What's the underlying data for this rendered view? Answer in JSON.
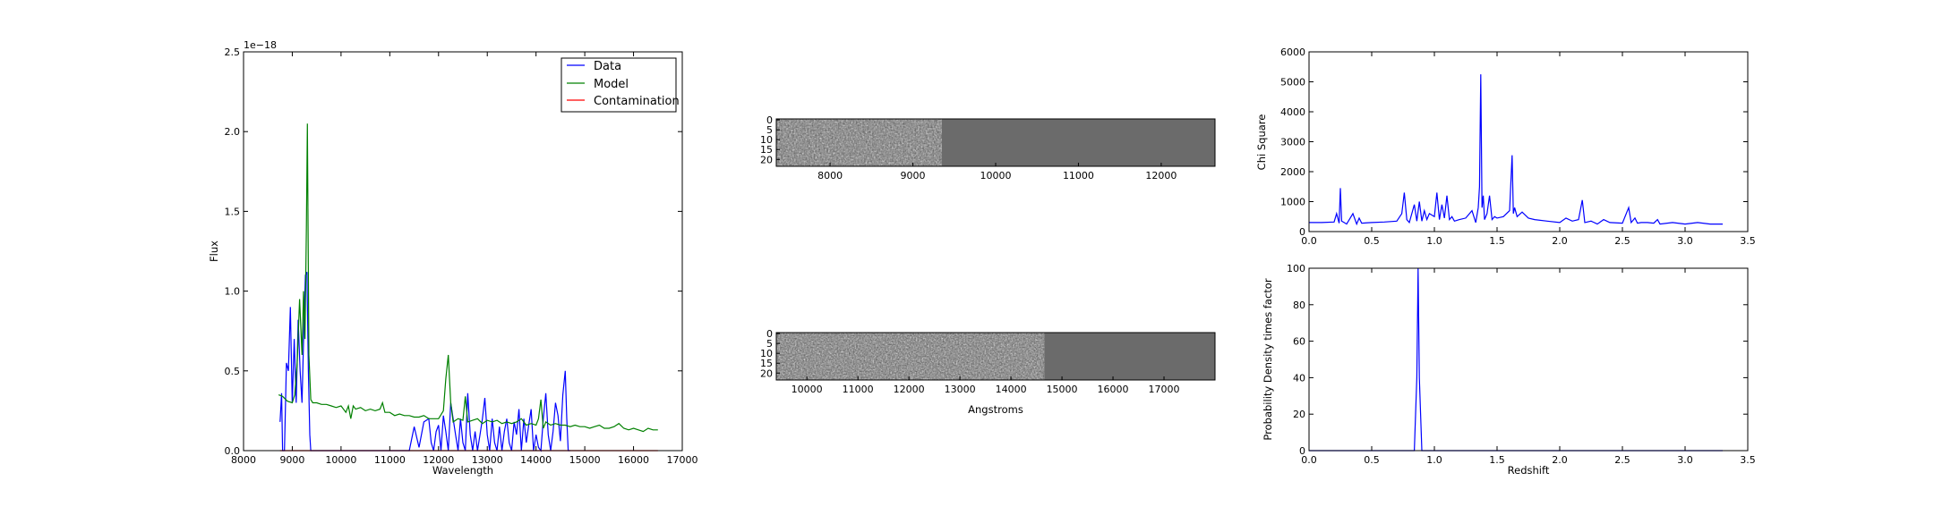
{
  "chart_data": [
    {
      "id": "spectrum",
      "type": "line",
      "xlabel": "Wavelength",
      "ylabel": "Flux",
      "offset_text": "1e−18",
      "xlim": [
        8000,
        17000
      ],
      "ylim": [
        0,
        2.5
      ],
      "xticks": [
        "8000",
        "9000",
        "10000",
        "11000",
        "12000",
        "13000",
        "14000",
        "15000",
        "16000",
        "17000"
      ],
      "yticks": [
        "0.0",
        "0.5",
        "1.0",
        "1.5",
        "2.0",
        "2.5"
      ],
      "legend": {
        "placement": "top-right",
        "entries": [
          "Data",
          "Model",
          "Contamination"
        ]
      },
      "series": [
        {
          "name": "Data",
          "color": "#0000ff",
          "x": [
            8750,
            8780,
            8800,
            8840,
            8880,
            8920,
            8960,
            9000,
            9040,
            9080,
            9120,
            9160,
            9200,
            9240,
            9270,
            9300,
            9330,
            9360,
            9380,
            9400,
            9500,
            11400,
            11500,
            11600,
            11700,
            11800,
            11850,
            11900,
            11950,
            12000,
            12050,
            12100,
            12150,
            12200,
            12250,
            12300,
            12350,
            12400,
            12450,
            12500,
            12550,
            12600,
            12650,
            12700,
            12750,
            12800,
            12850,
            12900,
            12950,
            13000,
            13050,
            13100,
            13150,
            13200,
            13250,
            13300,
            13350,
            13400,
            13450,
            13500,
            13550,
            13600,
            13650,
            13700,
            13750,
            13800,
            13850,
            13900,
            13950,
            14000,
            14050,
            14100,
            14150,
            14200,
            14250,
            14300,
            14350,
            14400,
            14450,
            14500,
            14550,
            14600,
            14630,
            14660,
            14700
          ],
          "y": [
            0.18,
            0.36,
            0.0,
            0.0,
            0.55,
            0.5,
            0.9,
            0.3,
            0.7,
            0.3,
            0.82,
            0.5,
            0.3,
            0.8,
            1.1,
            1.12,
            0.5,
            0.1,
            0.0,
            0.0,
            0.0,
            0.0,
            0.15,
            0.02,
            0.18,
            0.2,
            0.05,
            0.0,
            0.12,
            0.16,
            0.0,
            0.22,
            0.12,
            0.0,
            0.3,
            0.2,
            0.1,
            0.0,
            0.2,
            0.05,
            0.0,
            0.36,
            0.1,
            0.0,
            0.12,
            0.0,
            0.1,
            0.2,
            0.33,
            0.1,
            0.0,
            0.2,
            0.05,
            0.0,
            0.15,
            0.0,
            0.12,
            0.2,
            0.05,
            0.0,
            0.18,
            0.1,
            0.26,
            0.0,
            0.2,
            0.05,
            0.16,
            0.26,
            0.0,
            0.1,
            0.02,
            0.0,
            0.2,
            0.36,
            0.1,
            0.0,
            0.12,
            0.3,
            0.22,
            0.06,
            0.35,
            0.5,
            0.2,
            0.0,
            0.0
          ]
        },
        {
          "name": "Model",
          "color": "#008000",
          "x": [
            8720,
            8800,
            8900,
            9000,
            9050,
            9100,
            9150,
            9200,
            9230,
            9260,
            9290,
            9310,
            9340,
            9380,
            9420,
            9500,
            9600,
            9700,
            9800,
            9900,
            10000,
            10100,
            10150,
            10200,
            10250,
            10300,
            10400,
            10500,
            10600,
            10700,
            10800,
            10850,
            10900,
            11000,
            11100,
            11200,
            11300,
            11400,
            11500,
            11600,
            11700,
            11800,
            11900,
            12000,
            12100,
            12150,
            12200,
            12250,
            12300,
            12400,
            12500,
            12550,
            12600,
            12700,
            12800,
            12900,
            13000,
            13100,
            13200,
            13300,
            13400,
            13500,
            13600,
            13700,
            13800,
            13900,
            14000,
            14050,
            14100,
            14150,
            14200,
            14300,
            14400,
            14500,
            14600,
            14700,
            14800,
            14900,
            15000,
            15100,
            15200,
            15300,
            15400,
            15500,
            15600,
            15700,
            15800,
            15900,
            16000,
            16100,
            16200,
            16300,
            16400,
            16500
          ],
          "y": [
            0.35,
            0.34,
            0.31,
            0.3,
            0.35,
            0.55,
            0.95,
            0.6,
            1.0,
            0.7,
            1.4,
            2.05,
            0.6,
            0.32,
            0.3,
            0.3,
            0.29,
            0.29,
            0.28,
            0.27,
            0.28,
            0.24,
            0.28,
            0.2,
            0.28,
            0.26,
            0.27,
            0.25,
            0.26,
            0.25,
            0.26,
            0.3,
            0.24,
            0.24,
            0.22,
            0.23,
            0.22,
            0.22,
            0.21,
            0.21,
            0.22,
            0.2,
            0.2,
            0.2,
            0.25,
            0.45,
            0.6,
            0.3,
            0.18,
            0.2,
            0.19,
            0.34,
            0.18,
            0.19,
            0.2,
            0.17,
            0.19,
            0.18,
            0.19,
            0.17,
            0.18,
            0.17,
            0.18,
            0.2,
            0.16,
            0.17,
            0.16,
            0.2,
            0.32,
            0.14,
            0.18,
            0.16,
            0.17,
            0.16,
            0.16,
            0.15,
            0.16,
            0.15,
            0.15,
            0.14,
            0.15,
            0.16,
            0.14,
            0.14,
            0.15,
            0.17,
            0.14,
            0.13,
            0.14,
            0.13,
            0.12,
            0.14,
            0.13,
            0.13
          ]
        },
        {
          "name": "Contamination",
          "color": "#ff0000",
          "x": [
            8750,
            16500
          ],
          "y": [
            0.0,
            0.0
          ]
        }
      ]
    },
    {
      "id": "image-top",
      "type": "heatmap",
      "xlim": [
        7350,
        12650
      ],
      "ylim": [
        23.5,
        -0.5
      ],
      "data_end_x": 9350,
      "xticks": [
        "8000",
        "9000",
        "10000",
        "11000",
        "12000"
      ],
      "xtick_values": [
        8000,
        9000,
        10000,
        11000,
        12000
      ],
      "yticks": [
        "0",
        "5",
        "10",
        "15",
        "20"
      ],
      "ytick_values": [
        0,
        5,
        10,
        15,
        20
      ],
      "xlabel": "",
      "fill_color": "#6b6b6b"
    },
    {
      "id": "image-bottom",
      "type": "heatmap",
      "xlim": [
        9400,
        18000
      ],
      "ylim": [
        23.5,
        -0.5
      ],
      "data_end_x": 14650,
      "xticks": [
        "10000",
        "11000",
        "12000",
        "13000",
        "14000",
        "15000",
        "16000",
        "17000"
      ],
      "xtick_values": [
        10000,
        11000,
        12000,
        13000,
        14000,
        15000,
        16000,
        17000
      ],
      "yticks": [
        "0",
        "5",
        "10",
        "15",
        "20"
      ],
      "ytick_values": [
        0,
        5,
        10,
        15,
        20
      ],
      "xlabel": "Angstroms",
      "fill_color": "#6b6b6b"
    },
    {
      "id": "chisq",
      "type": "line",
      "xlabel": "",
      "ylabel": "Chi Square",
      "xlim": [
        0,
        3.5
      ],
      "ylim": [
        0,
        6000
      ],
      "xticks": [
        "0.0",
        "0.5",
        "1.0",
        "1.5",
        "2.0",
        "2.5",
        "3.0",
        "3.5"
      ],
      "yticks": [
        "0",
        "1000",
        "2000",
        "3000",
        "4000",
        "5000",
        "6000"
      ],
      "series": [
        {
          "name": "",
          "color": "#0000ff",
          "x": [
            0.0,
            0.1,
            0.2,
            0.22,
            0.24,
            0.25,
            0.26,
            0.28,
            0.3,
            0.35,
            0.38,
            0.4,
            0.42,
            0.5,
            0.6,
            0.7,
            0.74,
            0.76,
            0.78,
            0.8,
            0.84,
            0.86,
            0.88,
            0.9,
            0.92,
            0.94,
            0.96,
            1.0,
            1.02,
            1.04,
            1.06,
            1.08,
            1.1,
            1.12,
            1.14,
            1.16,
            1.2,
            1.25,
            1.3,
            1.33,
            1.35,
            1.36,
            1.37,
            1.38,
            1.39,
            1.4,
            1.42,
            1.44,
            1.46,
            1.48,
            1.5,
            1.55,
            1.6,
            1.62,
            1.63,
            1.64,
            1.66,
            1.7,
            1.75,
            1.8,
            1.9,
            2.0,
            2.05,
            2.1,
            2.15,
            2.18,
            2.2,
            2.25,
            2.3,
            2.35,
            2.4,
            2.5,
            2.55,
            2.57,
            2.6,
            2.62,
            2.65,
            2.7,
            2.75,
            2.78,
            2.8,
            2.9,
            3.0,
            3.1,
            3.2,
            3.3
          ],
          "y": [
            300,
            300,
            320,
            600,
            280,
            1450,
            350,
            300,
            250,
            600,
            250,
            450,
            280,
            300,
            320,
            350,
            600,
            1300,
            400,
            300,
            900,
            350,
            1000,
            350,
            700,
            400,
            600,
            500,
            1300,
            400,
            900,
            450,
            1200,
            400,
            500,
            350,
            400,
            450,
            700,
            300,
            800,
            1500,
            5250,
            800,
            1200,
            400,
            600,
            1200,
            400,
            500,
            450,
            500,
            700,
            2550,
            600,
            800,
            500,
            650,
            450,
            400,
            350,
            300,
            450,
            350,
            400,
            1050,
            300,
            350,
            250,
            400,
            300,
            280,
            800,
            300,
            450,
            280,
            300,
            300,
            280,
            400,
            250,
            300,
            250,
            300,
            250,
            250
          ]
        }
      ]
    },
    {
      "id": "pdf",
      "type": "line",
      "xlabel": "Redshift",
      "ylabel": "Probability Density times factor",
      "xlim": [
        0,
        3.5
      ],
      "ylim": [
        0,
        100
      ],
      "xticks": [
        "0.0",
        "0.5",
        "1.0",
        "1.5",
        "2.0",
        "2.5",
        "3.0",
        "3.5"
      ],
      "yticks": [
        "0",
        "20",
        "40",
        "60",
        "80",
        "100"
      ],
      "series": [
        {
          "name": "",
          "color": "#0000ff",
          "x": [
            0.0,
            0.84,
            0.86,
            0.87,
            0.88,
            0.9,
            3.3
          ],
          "y": [
            0,
            0,
            40,
            100,
            40,
            0,
            0
          ]
        }
      ]
    }
  ]
}
